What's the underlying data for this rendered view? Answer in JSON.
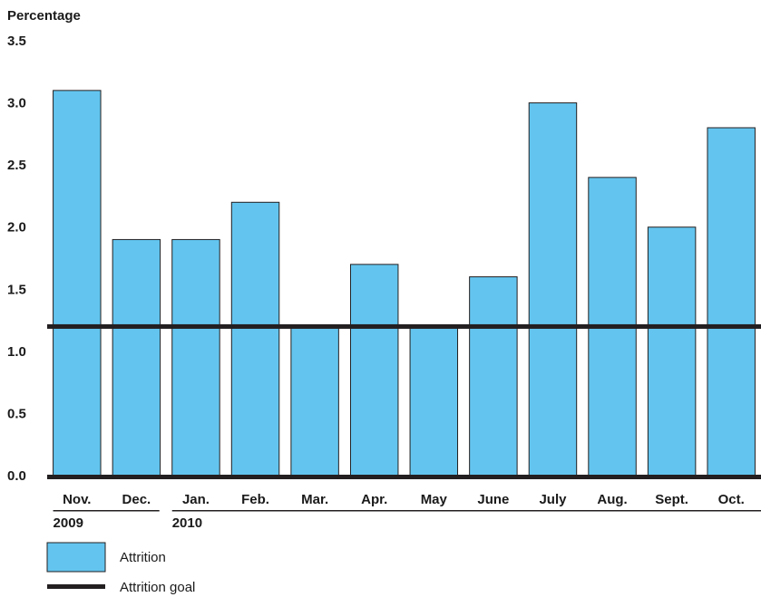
{
  "chart_data": {
    "type": "bar",
    "ylabel": "Percentage",
    "ylim": [
      0,
      3.5
    ],
    "yticks": [
      "0.0",
      "0.5",
      "1.0",
      "1.5",
      "2.0",
      "2.5",
      "3.0",
      "3.5"
    ],
    "categories": [
      "Nov.",
      "Dec.",
      "Jan.",
      "Feb.",
      "Mar.",
      "Apr.",
      "May",
      "June",
      "July",
      "Aug.",
      "Sept.",
      "Oct."
    ],
    "year_labels": [
      {
        "category": "Nov.",
        "text": "2009"
      },
      {
        "category": "Jan.",
        "text": "2010"
      }
    ],
    "series": [
      {
        "name": "Attrition",
        "values": [
          3.1,
          1.9,
          1.9,
          2.2,
          1.2,
          1.7,
          1.2,
          1.6,
          3.0,
          2.4,
          2.0,
          2.8
        ]
      }
    ],
    "goal": {
      "name": "Attrition goal",
      "value": 1.2
    },
    "legend": {
      "placement": "bottom-left",
      "items": [
        "Attrition",
        "Attrition goal"
      ]
    },
    "grid": false,
    "colors": {
      "bar": "#63c5ef",
      "goal": "#231f20",
      "axis": "#231f20"
    }
  }
}
